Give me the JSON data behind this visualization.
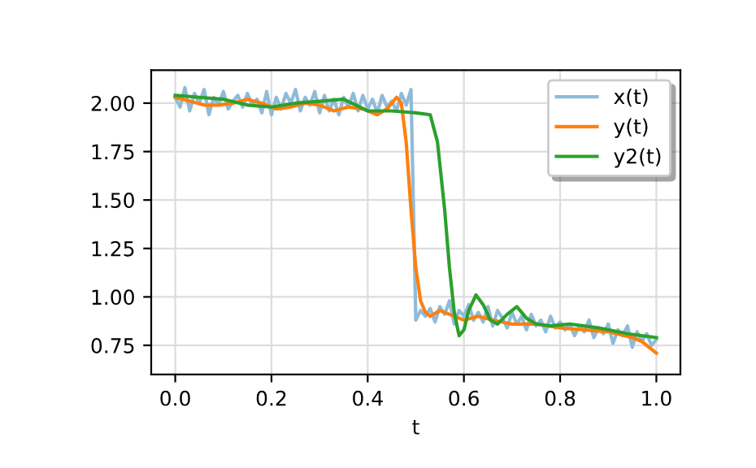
{
  "chart_data": {
    "type": "line",
    "xlabel": "t",
    "xlim": [
      -0.05,
      1.05
    ],
    "ylim": [
      0.6,
      2.17
    ],
    "xticks": [
      {
        "value": 0,
        "label": "0.0"
      },
      {
        "value": 0.2,
        "label": "0.2"
      },
      {
        "value": 0.4,
        "label": "0.4"
      },
      {
        "value": 0.6,
        "label": "0.6"
      },
      {
        "value": 0.8,
        "label": "0.8"
      },
      {
        "value": 1.0,
        "label": "1.0"
      }
    ],
    "yticks": [
      {
        "value": 0.75,
        "label": "0.75"
      },
      {
        "value": 1.0,
        "label": "1.00"
      },
      {
        "value": 1.25,
        "label": "1.25"
      },
      {
        "value": 1.5,
        "label": "1.50"
      },
      {
        "value": 1.75,
        "label": "1.75"
      },
      {
        "value": 2.0,
        "label": "2.00"
      }
    ],
    "grid": true,
    "legend": "top right",
    "line_style": "solid",
    "marker": "none",
    "series": [
      {
        "name": "x(t)",
        "color": "#8fbbd9",
        "x": [
          0,
          0.01,
          0.02,
          0.03,
          0.04,
          0.05,
          0.06,
          0.07,
          0.08,
          0.09,
          0.1,
          0.11,
          0.12,
          0.13,
          0.14,
          0.15,
          0.16,
          0.17,
          0.18,
          0.19,
          0.2,
          0.21,
          0.22,
          0.23,
          0.24,
          0.25,
          0.26,
          0.27,
          0.28,
          0.29,
          0.3,
          0.31,
          0.32,
          0.33,
          0.34,
          0.35,
          0.36,
          0.37,
          0.38,
          0.39,
          0.4,
          0.41,
          0.42,
          0.43,
          0.44,
          0.45,
          0.46,
          0.47,
          0.48,
          0.49,
          0.5,
          0.51,
          0.52,
          0.53,
          0.54,
          0.55,
          0.56,
          0.57,
          0.58,
          0.59,
          0.6,
          0.61,
          0.62,
          0.63,
          0.64,
          0.65,
          0.66,
          0.67,
          0.68,
          0.69,
          0.7,
          0.71,
          0.72,
          0.73,
          0.74,
          0.75,
          0.76,
          0.77,
          0.78,
          0.79,
          0.8,
          0.81,
          0.82,
          0.83,
          0.84,
          0.85,
          0.86,
          0.87,
          0.88,
          0.89,
          0.9,
          0.91,
          0.92,
          0.93,
          0.94,
          0.95,
          0.96,
          0.97,
          0.98,
          0.99,
          1.0
        ],
        "values": [
          2.03,
          1.98,
          2.08,
          1.96,
          2.05,
          2.0,
          2.07,
          1.94,
          2.03,
          1.99,
          2.06,
          1.97,
          2.01,
          2.04,
          1.98,
          2.05,
          1.99,
          2.02,
          1.95,
          2.06,
          1.94,
          2.03,
          1.97,
          2.05,
          2.0,
          2.07,
          1.96,
          2.03,
          1.99,
          2.06,
          1.95,
          2.04,
          1.96,
          2.02,
          1.94,
          2.03,
          1.98,
          2.05,
          1.96,
          2.04,
          1.97,
          2.02,
          1.95,
          2.04,
          1.98,
          2.01,
          1.96,
          2.05,
          1.99,
          2.07,
          0.88,
          0.93,
          0.9,
          0.94,
          0.87,
          0.95,
          0.91,
          0.98,
          0.86,
          0.93,
          0.9,
          0.96,
          0.88,
          0.92,
          0.87,
          0.95,
          0.85,
          0.93,
          0.89,
          0.84,
          0.92,
          0.86,
          0.9,
          0.83,
          0.91,
          0.85,
          0.88,
          0.82,
          0.9,
          0.84,
          0.87,
          0.83,
          0.86,
          0.8,
          0.85,
          0.82,
          0.88,
          0.79,
          0.84,
          0.81,
          0.86,
          0.76,
          0.83,
          0.8,
          0.85,
          0.74,
          0.82,
          0.77,
          0.81,
          0.75,
          0.78
        ]
      },
      {
        "name": "y(t)",
        "color": "#ff7f0e",
        "x": [
          0,
          0.03,
          0.06,
          0.09,
          0.12,
          0.15,
          0.18,
          0.21,
          0.24,
          0.27,
          0.3,
          0.33,
          0.36,
          0.39,
          0.42,
          0.44,
          0.46,
          0.47,
          0.48,
          0.49,
          0.5,
          0.51,
          0.52,
          0.53,
          0.55,
          0.57,
          0.6,
          0.63,
          0.66,
          0.7,
          0.75,
          0.8,
          0.85,
          0.9,
          0.95,
          0.97,
          1.0
        ],
        "values": [
          2.03,
          2.01,
          1.99,
          1.99,
          2.0,
          2.02,
          2.0,
          1.97,
          1.98,
          2.0,
          1.99,
          1.96,
          1.98,
          1.97,
          1.94,
          1.97,
          2.03,
          2.0,
          1.8,
          1.45,
          1.15,
          0.98,
          0.92,
          0.9,
          0.93,
          0.91,
          0.88,
          0.9,
          0.88,
          0.86,
          0.86,
          0.84,
          0.83,
          0.82,
          0.79,
          0.77,
          0.71
        ]
      },
      {
        "name": "y2(t)",
        "color": "#2ca02c",
        "x": [
          0,
          0.05,
          0.1,
          0.15,
          0.2,
          0.25,
          0.3,
          0.35,
          0.4,
          0.45,
          0.5,
          0.53,
          0.545,
          0.56,
          0.57,
          0.58,
          0.59,
          0.6,
          0.61,
          0.625,
          0.64,
          0.655,
          0.67,
          0.69,
          0.71,
          0.73,
          0.75,
          0.78,
          0.82,
          0.88,
          0.94,
          1.0
        ],
        "values": [
          2.04,
          2.03,
          2.02,
          1.99,
          1.98,
          2.0,
          2.01,
          2.02,
          1.96,
          1.96,
          1.95,
          1.94,
          1.8,
          1.45,
          1.15,
          0.92,
          0.8,
          0.83,
          0.93,
          1.01,
          0.96,
          0.88,
          0.86,
          0.91,
          0.95,
          0.89,
          0.86,
          0.85,
          0.86,
          0.84,
          0.81,
          0.79
        ]
      }
    ]
  }
}
